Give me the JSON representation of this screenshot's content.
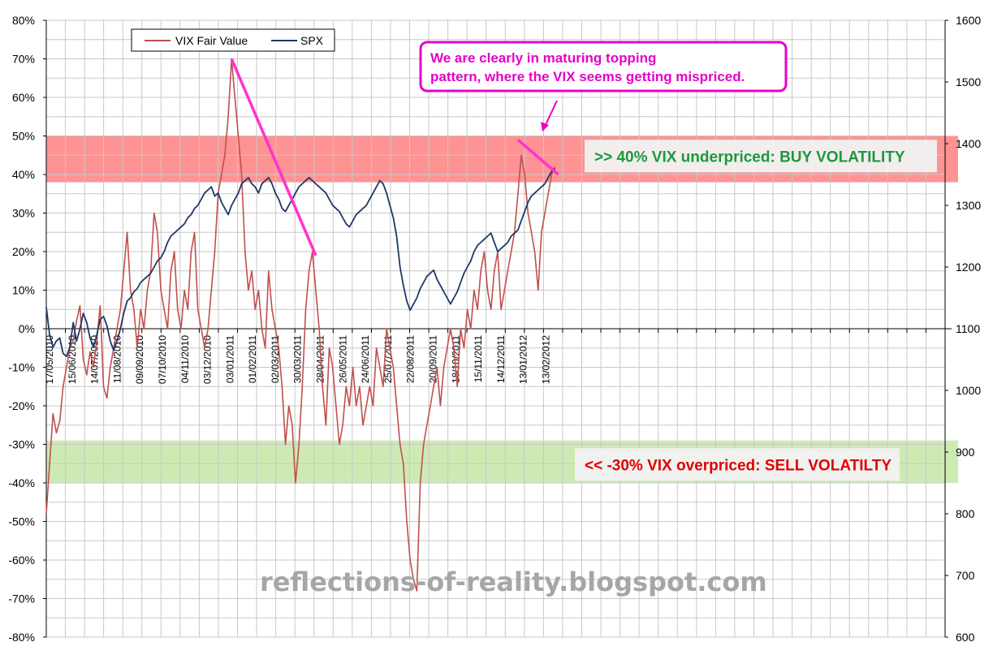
{
  "chart_data": {
    "type": "line",
    "title": "",
    "left_axis": {
      "ticks": [
        "80%",
        "70%",
        "60%",
        "50%",
        "40%",
        "30%",
        "20%",
        "10%",
        "0%",
        "-10%",
        "-20%",
        "-30%",
        "-40%",
        "-50%",
        "-60%",
        "-70%",
        "-80%"
      ],
      "range": [
        -80,
        80
      ]
    },
    "right_axis": {
      "ticks": [
        "1600",
        "1500",
        "1400",
        "1300",
        "1200",
        "1100",
        "1000",
        "900",
        "800",
        "700",
        "600"
      ],
      "range": [
        600,
        1600
      ]
    },
    "x_tick_labels": [
      "17/05/2010",
      "15/06/2010",
      "14/07/2010",
      "11/08/2010",
      "09/09/2010",
      "07/10/2010",
      "04/11/2010",
      "03/12/2010",
      "03/01/2011",
      "01/02/2011",
      "02/03/2011",
      "30/03/2011",
      "28/04/2011",
      "26/05/2011",
      "24/06/2011",
      "25/07/2011",
      "22/08/2011",
      "20/09/2011",
      "18/10/2011",
      "15/11/2011",
      "14/12/2011",
      "13/01/2012",
      "13/02/2012"
    ],
    "grid": true,
    "legend": {
      "placement": "top-left",
      "entries": [
        "VIX Fair Value",
        "SPX"
      ]
    },
    "series": [
      {
        "name": "VIX Fair Value",
        "axis": "left",
        "color": "#c0504d",
        "values": [
          -48,
          -35,
          -22,
          -27,
          -24,
          -15,
          -10,
          -5,
          -3,
          2,
          6,
          -8,
          -12,
          -6,
          -10,
          -3,
          6,
          -15,
          -18,
          -10,
          -5,
          0,
          5,
          15,
          25,
          10,
          5,
          -5,
          5,
          0,
          10,
          15,
          30,
          25,
          10,
          5,
          0,
          15,
          20,
          5,
          0,
          10,
          5,
          20,
          25,
          5,
          0,
          -5,
          0,
          10,
          20,
          35,
          40,
          45,
          55,
          70,
          60,
          50,
          40,
          20,
          10,
          15,
          5,
          10,
          0,
          -5,
          15,
          5,
          0,
          -5,
          -15,
          -30,
          -20,
          -25,
          -40,
          -30,
          -15,
          5,
          15,
          20,
          10,
          0,
          -15,
          -25,
          -5,
          -10,
          -20,
          -30,
          -25,
          -15,
          -20,
          -10,
          -20,
          -15,
          -25,
          -20,
          -15,
          -20,
          -5,
          -10,
          -15,
          0,
          -5,
          -10,
          -20,
          -30,
          -35,
          -50,
          -60,
          -65,
          -68,
          -40,
          -30,
          -25,
          -20,
          -15,
          -10,
          -20,
          -10,
          -5,
          0,
          -5,
          -15,
          0,
          -5,
          5,
          0,
          10,
          5,
          15,
          20,
          10,
          5,
          15,
          20,
          5,
          10,
          15,
          20,
          25,
          35,
          45,
          40,
          30,
          25,
          20,
          10,
          25,
          30,
          35,
          40,
          42
        ],
        "x_count": 152
      },
      {
        "name": "SPX",
        "axis": "right",
        "color": "#1f3864",
        "values": [
          1135,
          1090,
          1070,
          1080,
          1085,
          1060,
          1055,
          1070,
          1110,
          1080,
          1100,
          1125,
          1110,
          1085,
          1070,
          1090,
          1115,
          1120,
          1105,
          1080,
          1065,
          1080,
          1100,
          1125,
          1145,
          1150,
          1160,
          1165,
          1175,
          1180,
          1185,
          1190,
          1200,
          1210,
          1215,
          1225,
          1240,
          1250,
          1255,
          1260,
          1265,
          1270,
          1280,
          1285,
          1295,
          1300,
          1310,
          1320,
          1325,
          1330,
          1315,
          1320,
          1305,
          1295,
          1285,
          1300,
          1310,
          1320,
          1335,
          1340,
          1345,
          1335,
          1330,
          1320,
          1335,
          1340,
          1345,
          1335,
          1320,
          1310,
          1295,
          1290,
          1300,
          1310,
          1320,
          1330,
          1335,
          1340,
          1345,
          1340,
          1335,
          1330,
          1325,
          1320,
          1310,
          1300,
          1295,
          1290,
          1280,
          1270,
          1265,
          1275,
          1285,
          1290,
          1295,
          1300,
          1310,
          1320,
          1330,
          1340,
          1335,
          1320,
          1300,
          1280,
          1250,
          1200,
          1170,
          1145,
          1130,
          1140,
          1150,
          1165,
          1175,
          1185,
          1190,
          1195,
          1180,
          1170,
          1160,
          1150,
          1140,
          1150,
          1160,
          1175,
          1190,
          1200,
          1210,
          1225,
          1235,
          1240,
          1245,
          1250,
          1255,
          1240,
          1225,
          1230,
          1235,
          1240,
          1250,
          1255,
          1260,
          1275,
          1290,
          1305,
          1315,
          1320,
          1325,
          1330,
          1335,
          1345,
          1355,
          1360
        ],
        "x_count": 152
      }
    ],
    "bands": [
      {
        "axis": "left",
        "from": 38,
        "to": 50,
        "color": "#ff8080",
        "label": ">> 40%  VIX underpriced: BUY VOLATILITY",
        "label_color": "#1a9a3a"
      },
      {
        "axis": "left",
        "from": -40,
        "to": -29,
        "color": "#c6e6a6",
        "label": "<< -30%  VIX overpriced: SELL VOLATILTY",
        "label_color": "#e00000"
      }
    ],
    "annotations": [
      {
        "text_lines": [
          "We are clearly in maturing topping",
          "pattern, where the VIX seems getting mispriced."
        ],
        "color": "#e600c8"
      }
    ],
    "trend_lines": [
      {
        "axis": "left",
        "from": [
          55,
          70
        ],
        "to": [
          80,
          19
        ],
        "color": "#ff33cc"
      },
      {
        "axis": "left",
        "from": [
          140,
          49
        ],
        "to": [
          152,
          40
        ],
        "color": "#ff33cc"
      }
    ],
    "watermark": "reflections-of-reality.blogspot.com"
  }
}
